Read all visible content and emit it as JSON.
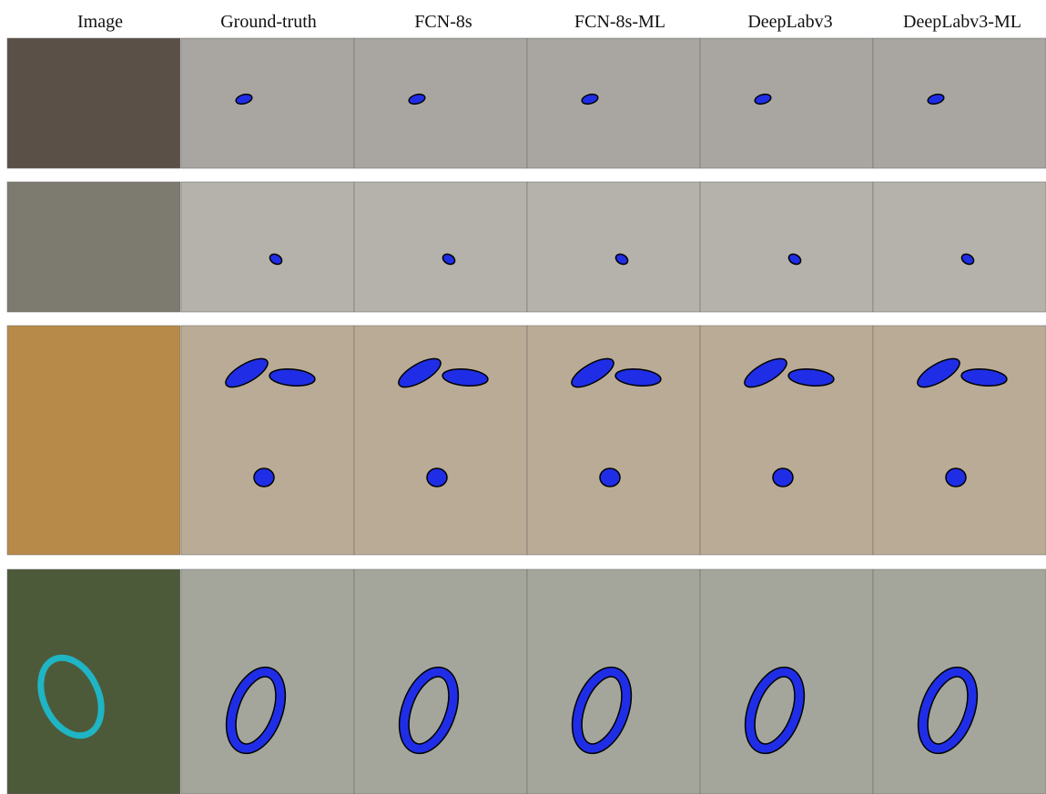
{
  "header": {
    "columns": [
      "Image",
      "Ground-truth",
      "FCN-8s",
      "FCN-8s-ML",
      "DeepLabv3",
      "DeepLabv3-ML"
    ]
  }
}
